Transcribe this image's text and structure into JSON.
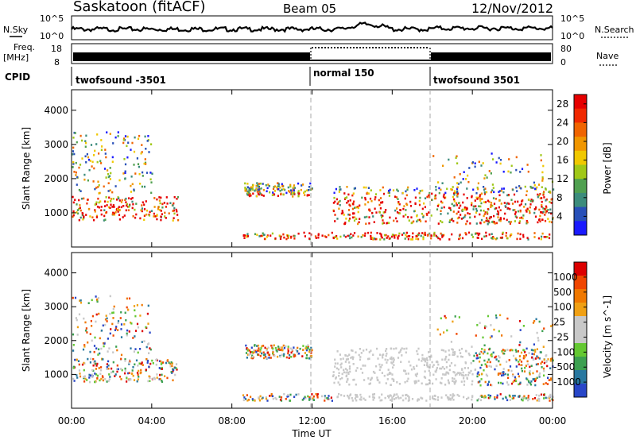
{
  "header": {
    "station": "Saskatoon (fitACF)",
    "beam": "Beam 05",
    "date": "12/Nov/2012"
  },
  "top_panels": {
    "nsky_label": "N.Sky",
    "nsky_ticks": [
      "10^5",
      "10^0"
    ],
    "nsearch_label": "N.Search",
    "nsearch_ticks": [
      "10^5",
      "10^0"
    ],
    "freq_label_1": "Freq.",
    "freq_label_2": "[MHz]",
    "freq_ticks": [
      "18",
      "8"
    ],
    "nave_label": "Nave",
    "nave_ticks": [
      "80",
      "0"
    ],
    "cpid_label": "CPID",
    "cpid_segments": [
      {
        "label": "twofsound -3501",
        "start_hour": 0
      },
      {
        "label": "normal 150",
        "start_hour": 12
      },
      {
        "label": "twofsound 3501",
        "start_hour": 18
      }
    ]
  },
  "chart_data": [
    {
      "type": "heatmap",
      "panel": "power",
      "ylabel": "Slant Range [km]",
      "xlabel": "Time UT",
      "x_ticks": [
        "00:00",
        "04:00",
        "08:00",
        "12:00",
        "16:00",
        "20:00",
        "00:00"
      ],
      "xlim_hours": [
        0,
        24
      ],
      "y_ticks": [
        1000,
        2000,
        3000,
        4000
      ],
      "ylim": [
        0,
        4600
      ],
      "colorbar_label": "Power [dB]",
      "colorbar_ticks": [
        "4",
        "8",
        "12",
        "16",
        "20",
        "24",
        "28"
      ],
      "colorbar_colors": [
        "#1a1aff",
        "#2850b8",
        "#3c8c7c",
        "#50a050",
        "#a0c818",
        "#f0c800",
        "#f09600",
        "#f06400",
        "#f02800",
        "#e60000"
      ],
      "dashed_markers_hours": [
        12,
        18
      ]
    },
    {
      "type": "heatmap",
      "panel": "velocity",
      "ylabel": "Slant Range [km]",
      "xlabel": "Time UT",
      "x_ticks": [
        "00:00",
        "04:00",
        "08:00",
        "12:00",
        "16:00",
        "20:00",
        "00:00"
      ],
      "xlim_hours": [
        0,
        24
      ],
      "y_ticks": [
        1000,
        2000,
        3000,
        4000
      ],
      "ylim": [
        0,
        4600
      ],
      "colorbar_label": "Velocity [m s^-1]",
      "colorbar_ticks": [
        "1000",
        "500",
        "100",
        "25",
        "-25",
        "-100",
        "-500",
        "-1000"
      ],
      "colorbar_colors": [
        "#2846c8",
        "#2878a0",
        "#3ca050",
        "#64c832",
        "#c8c8c8",
        "#c8c8c8",
        "#f0a014",
        "#f07800",
        "#f04600",
        "#dc0000"
      ],
      "dashed_markers_hours": [
        12,
        18
      ]
    }
  ]
}
